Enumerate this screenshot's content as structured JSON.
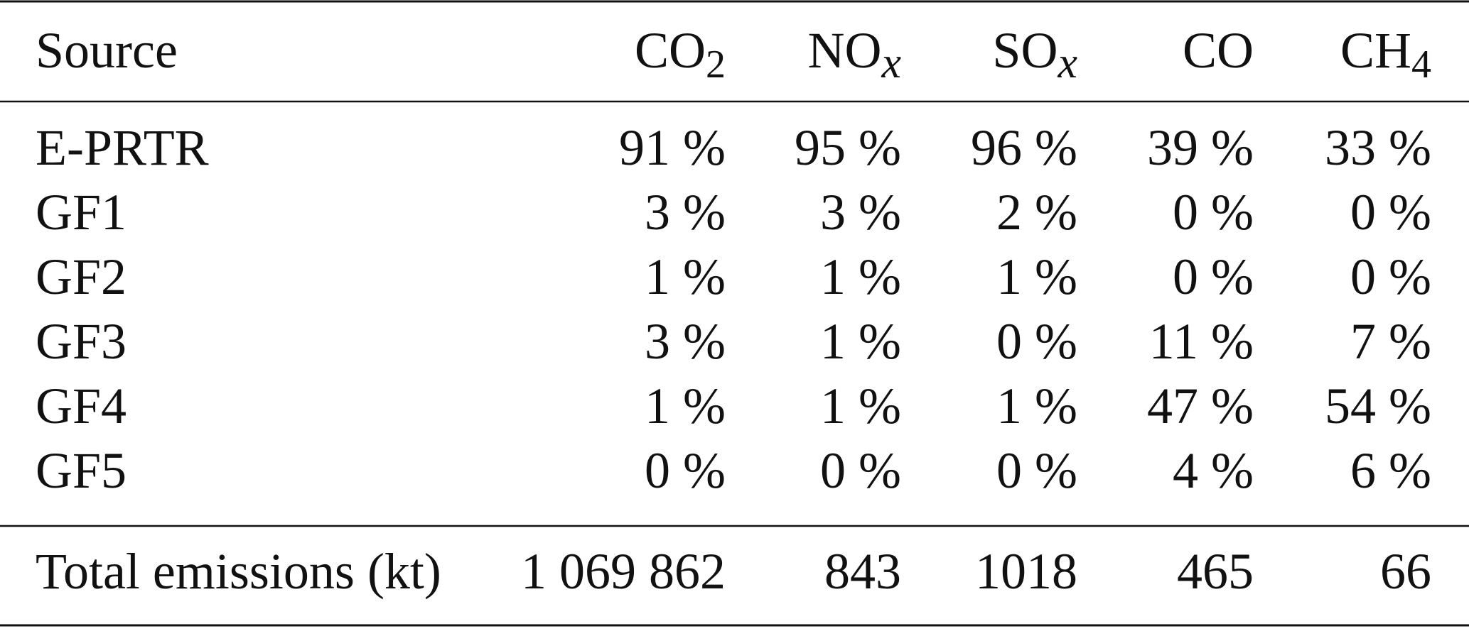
{
  "table": {
    "header": [
      "Source",
      {
        "main": "CO",
        "sub": "2"
      },
      {
        "main": "NO",
        "sub": "x"
      },
      {
        "main": "SO",
        "sub": "x"
      },
      "CO",
      {
        "main": "CH",
        "sub": "4"
      }
    ],
    "rows": [
      [
        "E-PRTR",
        "91 %",
        "95 %",
        "96 %",
        "39 %",
        "33 %"
      ],
      [
        "GF1",
        "3 %",
        "3 %",
        "2 %",
        "0 %",
        "0 %"
      ],
      [
        "GF2",
        "1 %",
        "1 %",
        "1 %",
        "0 %",
        "0 %"
      ],
      [
        "GF3",
        "3 %",
        "1 %",
        "0 %",
        "11 %",
        "7 %"
      ],
      [
        "GF4",
        "1 %",
        "1 %",
        "1 %",
        "47 %",
        "54 %"
      ],
      [
        "GF5",
        "0 %",
        "0 %",
        "0 %",
        "4 %",
        "6 %"
      ]
    ],
    "footer": [
      "Total emissions (kt)",
      "1 069 862",
      "843",
      "1018",
      "465",
      "66"
    ]
  }
}
